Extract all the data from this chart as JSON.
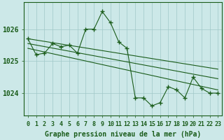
{
  "title": "Graphe pression niveau de la mer (hPa)",
  "background_color": "#cce8e8",
  "line_color": "#1a5c1a",
  "grid_color": "#a0c8c8",
  "main_series": [
    1025.7,
    1025.2,
    1025.25,
    1025.55,
    1025.45,
    1025.5,
    1025.25,
    1026.0,
    1026.0,
    1026.55,
    1026.2,
    1025.6,
    1025.4,
    1023.85,
    1023.85,
    1023.6,
    1023.7,
    1024.2,
    1024.1,
    1023.85,
    1024.5,
    1024.15,
    1024.0,
    1024.0
  ],
  "trend_lines": [
    {
      "x0": 0,
      "y0": 1025.7,
      "x1": 23,
      "y1": 1024.75
    },
    {
      "x0": 0,
      "y0": 1025.55,
      "x1": 23,
      "y1": 1024.45
    },
    {
      "x0": 0,
      "y0": 1025.4,
      "x1": 23,
      "y1": 1024.1
    }
  ],
  "ylim": [
    1023.3,
    1026.85
  ],
  "yticks": [
    1024,
    1025,
    1026
  ],
  "xticks": [
    0,
    1,
    2,
    3,
    4,
    5,
    6,
    7,
    8,
    9,
    10,
    11,
    12,
    13,
    14,
    15,
    16,
    17,
    18,
    19,
    20,
    21,
    22,
    23
  ],
  "xlabel_fontsize": 6,
  "ylabel_fontsize": 7,
  "title_fontsize": 7,
  "marker": "+",
  "markersize": 4,
  "linewidth": 0.8
}
